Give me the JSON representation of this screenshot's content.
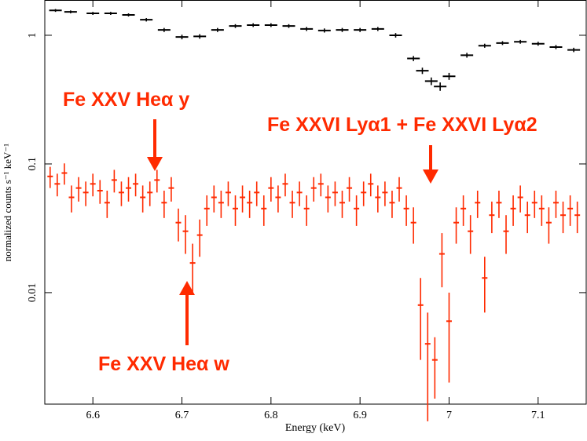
{
  "chart_data": {
    "type": "scatter",
    "x_label": "Energy (keV)",
    "y_label": "normalized counts s⁻¹ keV⁻¹",
    "xlim": [
      6.546,
      7.154
    ],
    "xticks": [
      6.6,
      6.7,
      6.8,
      6.9,
      7,
      7.1
    ],
    "ylim": [
      0.00136,
      1.88
    ],
    "yticks": [
      0.01,
      0.1,
      1
    ],
    "log_y": true,
    "annotations": [
      "Fe XXV Heα y",
      "Fe XXVI Lyα1 + Fe XXVI Lyα2",
      "Fe XXV Heα w"
    ],
    "series": [
      {
        "color": "#000000",
        "x": [
          6.558,
          6.575,
          6.6,
          6.62,
          6.64,
          6.66,
          6.68,
          6.7,
          6.72,
          6.74,
          6.76,
          6.78,
          6.8,
          6.82,
          6.84,
          6.86,
          6.88,
          6.9,
          6.92,
          6.94,
          6.96,
          6.97,
          6.98,
          6.99,
          7.0,
          7.02,
          7.04,
          7.06,
          7.08,
          7.1,
          7.12,
          7.14
        ],
        "values": [
          1.56,
          1.52,
          1.48,
          1.48,
          1.44,
          1.32,
          1.1,
          0.97,
          0.98,
          1.1,
          1.18,
          1.2,
          1.2,
          1.18,
          1.12,
          1.09,
          1.1,
          1.1,
          1.12,
          1.0,
          0.66,
          0.53,
          0.44,
          0.4,
          0.48,
          0.7,
          0.83,
          0.87,
          0.89,
          0.86,
          0.81,
          0.77
        ],
        "yerr": [
          0.04,
          0.04,
          0.04,
          0.04,
          0.04,
          0.04,
          0.04,
          0.04,
          0.04,
          0.04,
          0.04,
          0.04,
          0.04,
          0.04,
          0.04,
          0.04,
          0.04,
          0.04,
          0.04,
          0.04,
          0.03,
          0.03,
          0.03,
          0.03,
          0.03,
          0.03,
          0.03,
          0.03,
          0.03,
          0.03,
          0.03,
          0.03
        ]
      },
      {
        "color": "#ff2a00",
        "x": [
          6.552,
          6.56,
          6.568,
          6.576,
          6.584,
          6.592,
          6.6,
          6.608,
          6.616,
          6.624,
          6.632,
          6.64,
          6.648,
          6.656,
          6.664,
          6.672,
          6.68,
          6.688,
          6.696,
          6.704,
          6.712,
          6.72,
          6.728,
          6.736,
          6.744,
          6.752,
          6.76,
          6.768,
          6.776,
          6.784,
          6.792,
          6.8,
          6.808,
          6.816,
          6.824,
          6.832,
          6.84,
          6.848,
          6.856,
          6.864,
          6.872,
          6.88,
          6.888,
          6.896,
          6.904,
          6.912,
          6.92,
          6.928,
          6.936,
          6.944,
          6.952,
          6.96,
          6.968,
          6.976,
          6.984,
          6.992,
          7.0,
          7.008,
          7.016,
          7.024,
          7.032,
          7.04,
          7.048,
          7.056,
          7.064,
          7.072,
          7.08,
          7.088,
          7.096,
          7.104,
          7.112,
          7.12,
          7.128,
          7.136,
          7.144
        ],
        "values": [
          0.08,
          0.07,
          0.085,
          0.055,
          0.065,
          0.06,
          0.07,
          0.062,
          0.05,
          0.075,
          0.06,
          0.065,
          0.07,
          0.055,
          0.06,
          0.075,
          0.05,
          0.065,
          0.035,
          0.03,
          0.017,
          0.028,
          0.045,
          0.055,
          0.05,
          0.06,
          0.045,
          0.055,
          0.05,
          0.06,
          0.045,
          0.065,
          0.055,
          0.07,
          0.05,
          0.06,
          0.045,
          0.065,
          0.07,
          0.055,
          0.06,
          0.05,
          0.065,
          0.045,
          0.06,
          0.07,
          0.055,
          0.06,
          0.05,
          0.065,
          0.045,
          0.035,
          0.008,
          0.004,
          0.003,
          0.02,
          0.006,
          0.035,
          0.045,
          0.03,
          0.05,
          0.013,
          0.04,
          0.05,
          0.03,
          0.045,
          0.055,
          0.04,
          0.05,
          0.045,
          0.035,
          0.05,
          0.04,
          0.045,
          0.04
        ],
        "yerr": [
          0.015,
          0.014,
          0.016,
          0.013,
          0.014,
          0.013,
          0.014,
          0.013,
          0.012,
          0.015,
          0.013,
          0.014,
          0.014,
          0.013,
          0.013,
          0.015,
          0.012,
          0.014,
          0.01,
          0.01,
          0.007,
          0.009,
          0.012,
          0.013,
          0.012,
          0.013,
          0.012,
          0.013,
          0.012,
          0.013,
          0.012,
          0.014,
          0.013,
          0.014,
          0.012,
          0.013,
          0.012,
          0.014,
          0.014,
          0.013,
          0.013,
          0.012,
          0.014,
          0.012,
          0.013,
          0.014,
          0.013,
          0.013,
          0.012,
          0.014,
          0.012,
          0.011,
          0.005,
          0.003,
          0.0015,
          0.009,
          0.004,
          0.011,
          0.012,
          0.01,
          0.012,
          0.006,
          0.011,
          0.012,
          0.01,
          0.012,
          0.013,
          0.011,
          0.012,
          0.012,
          0.011,
          0.012,
          0.011,
          0.012,
          0.011
        ]
      }
    ]
  }
}
